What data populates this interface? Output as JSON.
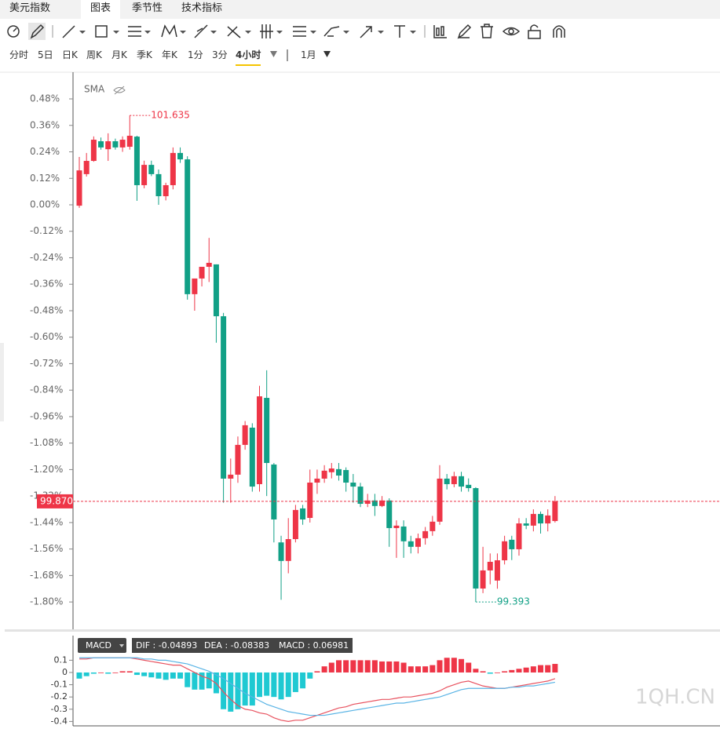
{
  "header": {
    "tabs": [
      "美元指数",
      "图表",
      "季节性",
      "技术指标"
    ],
    "active_tab": 1
  },
  "periods": {
    "items": [
      "分时",
      "5日",
      "日K",
      "周K",
      "月K",
      "季K",
      "年K",
      "1分",
      "3分",
      "4小时",
      "1月"
    ],
    "active": 9
  },
  "watermark": "1QH.CN",
  "chart_data": [
    {
      "type": "candlestick",
      "indicator": "SMA",
      "up_color": "#ee3547",
      "down_color": "#11a086",
      "ylim": [
        -1.924,
        0.601
      ],
      "yticks": [
        {
          "value": 0.48,
          "label": "0.48%"
        },
        {
          "value": 0.36,
          "label": "0.36%"
        },
        {
          "value": 0.24,
          "label": "0.24%"
        },
        {
          "value": 0.12,
          "label": "0.12%"
        },
        {
          "value": 0,
          "label": "0.00%"
        },
        {
          "value": -0.12,
          "label": "-0.12%"
        },
        {
          "value": -0.24,
          "label": "-0.24%"
        },
        {
          "value": -0.36,
          "label": "-0.36%"
        },
        {
          "value": -0.48,
          "label": "-0.48%"
        },
        {
          "value": -0.6,
          "label": "-0.60%"
        },
        {
          "value": -0.72,
          "label": "-0.72%"
        },
        {
          "value": -0.84,
          "label": "-0.84%"
        },
        {
          "value": -0.96,
          "label": "-0.96%"
        },
        {
          "value": -1.08,
          "label": "-1.08%"
        },
        {
          "value": -1.2,
          "label": "-1.20%"
        },
        {
          "value": -1.32,
          "label": "-1.32%"
        },
        {
          "value": -1.44,
          "label": "-1.44%"
        },
        {
          "value": -1.56,
          "label": "-1.56%"
        },
        {
          "value": -1.68,
          "label": "-1.68%"
        },
        {
          "value": -1.8,
          "label": "-1.80%"
        }
      ],
      "open": [
        -0.004,
        0.139,
        0.199,
        0.288,
        0.252,
        0.288,
        0.26,
        0.263,
        0.309,
        0.089,
        0.181,
        0.139,
        0.039,
        0.089,
        0.235,
        0.206,
        -0.405,
        -0.334,
        -0.281,
        -0.27,
        -0.505,
        -1.241,
        -1.223,
        -1.088,
        -1.01,
        -1.266,
        -0.875,
        -1.177,
        -1.53,
        -1.614,
        -1.515,
        -1.376,
        -1.419,
        -1.259,
        -1.241,
        -1.212,
        -1.198,
        -1.202,
        -1.259,
        -1.277,
        -1.355,
        -1.34,
        -1.365,
        -1.34,
        -1.465,
        -1.458,
        -1.525,
        -1.55,
        -1.511,
        -1.479,
        -1.436,
        -1.241,
        -1.266,
        -1.23,
        -1.269,
        -1.284,
        -1.739,
        -1.657,
        -1.703,
        -1.611,
        -1.518,
        -1.561,
        -1.444,
        -1.454,
        -1.401,
        -1.444,
        -1.433
      ],
      "close": [
        0.156,
        0.199,
        0.295,
        0.26,
        0.288,
        0.26,
        0.295,
        0.313,
        0.089,
        0.181,
        0.139,
        0.039,
        0.089,
        0.235,
        0.206,
        -0.405,
        -0.334,
        -0.281,
        -0.263,
        -0.505,
        -1.241,
        -1.223,
        -1.088,
        -0.999,
        -1.277,
        -0.868,
        -1.17,
        -1.426,
        -1.614,
        -1.515,
        -1.383,
        -1.426,
        -1.259,
        -1.241,
        -1.205,
        -1.195,
        -1.227,
        -1.259,
        -1.277,
        -1.355,
        -1.34,
        -1.365,
        -1.34,
        -1.465,
        -1.454,
        -1.525,
        -1.55,
        -1.511,
        -1.479,
        -1.436,
        -1.241,
        -1.266,
        -1.23,
        -1.277,
        -1.284,
        -1.739,
        -1.657,
        -1.618,
        -1.611,
        -1.525,
        -1.561,
        -1.444,
        -1.454,
        -1.401,
        -1.444,
        -1.408,
        -1.344
      ],
      "high": [
        0.217,
        0.235,
        0.31,
        0.305,
        0.324,
        0.3,
        0.31,
        0.405,
        0.313,
        0.2,
        0.2,
        0.16,
        0.1,
        0.26,
        0.26,
        0.22,
        -0.34,
        -0.3,
        -0.15,
        -0.27,
        -0.49,
        -1.15,
        -1.05,
        -0.98,
        -0.99,
        -0.82,
        -0.75,
        -1.17,
        -1.5,
        -1.42,
        -1.36,
        -1.36,
        -1.2,
        -1.2,
        -1.18,
        -1.17,
        -1.17,
        -1.19,
        -1.22,
        -1.26,
        -1.31,
        -1.31,
        -1.32,
        -1.33,
        -1.43,
        -1.43,
        -1.5,
        -1.49,
        -1.46,
        -1.41,
        -1.18,
        -1.22,
        -1.21,
        -1.21,
        -1.24,
        -1.28,
        -1.55,
        -1.58,
        -1.58,
        -1.5,
        -1.5,
        -1.42,
        -1.42,
        -1.38,
        -1.39,
        -1.38,
        -1.32
      ],
      "low": [
        -0.014,
        0.128,
        0.195,
        0.25,
        0.199,
        0.25,
        0.24,
        0.25,
        0.018,
        0.075,
        0.13,
        0,
        0.02,
        0.07,
        0.19,
        -0.43,
        -0.48,
        -0.37,
        -0.35,
        -0.625,
        -1.35,
        -1.35,
        -1.26,
        -1.11,
        -1.3,
        -1.3,
        -1.32,
        -1.53,
        -1.79,
        -1.67,
        -1.53,
        -1.45,
        -1.44,
        -1.31,
        -1.26,
        -1.24,
        -1.25,
        -1.3,
        -1.35,
        -1.37,
        -1.37,
        -1.41,
        -1.37,
        -1.55,
        -1.6,
        -1.6,
        -1.58,
        -1.58,
        -1.54,
        -1.5,
        -1.45,
        -1.29,
        -1.28,
        -1.3,
        -1.3,
        -1.8,
        -1.76,
        -1.72,
        -1.74,
        -1.63,
        -1.61,
        -1.59,
        -1.47,
        -1.48,
        -1.49,
        -1.48,
        -1.44
      ],
      "high_label": "101.635",
      "low_label": "99.393",
      "last_label": "99.870"
    },
    {
      "type": "macd",
      "indicator": "MACD",
      "legend": [
        "DIF : -0.04893",
        "DEA : -0.08383",
        "MACD : 0.06981"
      ],
      "ylim": [
        -0.436,
        0.301
      ],
      "yticks": [
        0.1,
        0,
        -0.1,
        -0.2,
        -0.3,
        -0.4
      ],
      "hist_up_color": "#ee3547",
      "hist_down_color": "#1fc9d2",
      "histogram": [
        -0.05,
        -0.03,
        -0.01,
        0,
        -0.01,
        0,
        0.01,
        0.01,
        -0.02,
        -0.03,
        -0.04,
        -0.05,
        -0.06,
        -0.05,
        -0.05,
        -0.12,
        -0.14,
        -0.14,
        -0.13,
        -0.17,
        -0.3,
        -0.32,
        -0.3,
        -0.27,
        -0.27,
        -0.2,
        -0.19,
        -0.2,
        -0.22,
        -0.2,
        -0.16,
        -0.13,
        -0.05,
        0.01,
        0.05,
        0.08,
        0.1,
        0.1,
        0.1,
        0.1,
        0.1,
        0.1,
        0.09,
        0.09,
        0.09,
        0.08,
        0.05,
        0.05,
        0.05,
        0.06,
        0.1,
        0.12,
        0.12,
        0.11,
        0.08,
        0.03,
        0.01,
        -0.01,
        0,
        0.01,
        0.02,
        0.03,
        0.04,
        0.05,
        0.06,
        0.06,
        0.07
      ],
      "series": [
        {
          "color": "#e8525f",
          "values": [
            0.11,
            0.11,
            0.12,
            0.12,
            0.12,
            0.12,
            0.12,
            0.12,
            0.11,
            0.1,
            0.09,
            0.08,
            0.07,
            0.06,
            0.06,
            0.03,
            0,
            -0.03,
            -0.05,
            -0.09,
            -0.16,
            -0.22,
            -0.27,
            -0.3,
            -0.31,
            -0.33,
            -0.34,
            -0.37,
            -0.39,
            -0.4,
            -0.39,
            -0.39,
            -0.37,
            -0.35,
            -0.33,
            -0.31,
            -0.29,
            -0.28,
            -0.26,
            -0.25,
            -0.24,
            -0.23,
            -0.22,
            -0.22,
            -0.21,
            -0.2,
            -0.2,
            -0.19,
            -0.18,
            -0.17,
            -0.15,
            -0.12,
            -0.1,
            -0.08,
            -0.07,
            -0.09,
            -0.11,
            -0.12,
            -0.13,
            -0.13,
            -0.12,
            -0.11,
            -0.1,
            -0.09,
            -0.08,
            -0.07,
            -0.05
          ]
        },
        {
          "color": "#5ab4e5",
          "values": [
            0.12,
            0.12,
            0.12,
            0.12,
            0.12,
            0.12,
            0.12,
            0.12,
            0.12,
            0.11,
            0.11,
            0.1,
            0.1,
            0.09,
            0.08,
            0.07,
            0.05,
            0.03,
            0.01,
            -0.02,
            -0.05,
            -0.09,
            -0.13,
            -0.17,
            -0.2,
            -0.23,
            -0.26,
            -0.28,
            -0.3,
            -0.32,
            -0.33,
            -0.34,
            -0.35,
            -0.35,
            -0.35,
            -0.34,
            -0.33,
            -0.32,
            -0.31,
            -0.3,
            -0.29,
            -0.28,
            -0.27,
            -0.26,
            -0.25,
            -0.25,
            -0.24,
            -0.23,
            -0.22,
            -0.21,
            -0.2,
            -0.18,
            -0.16,
            -0.14,
            -0.13,
            -0.13,
            -0.13,
            -0.13,
            -0.13,
            -0.13,
            -0.12,
            -0.12,
            -0.11,
            -0.11,
            -0.1,
            -0.09,
            -0.08
          ]
        }
      ]
    }
  ]
}
